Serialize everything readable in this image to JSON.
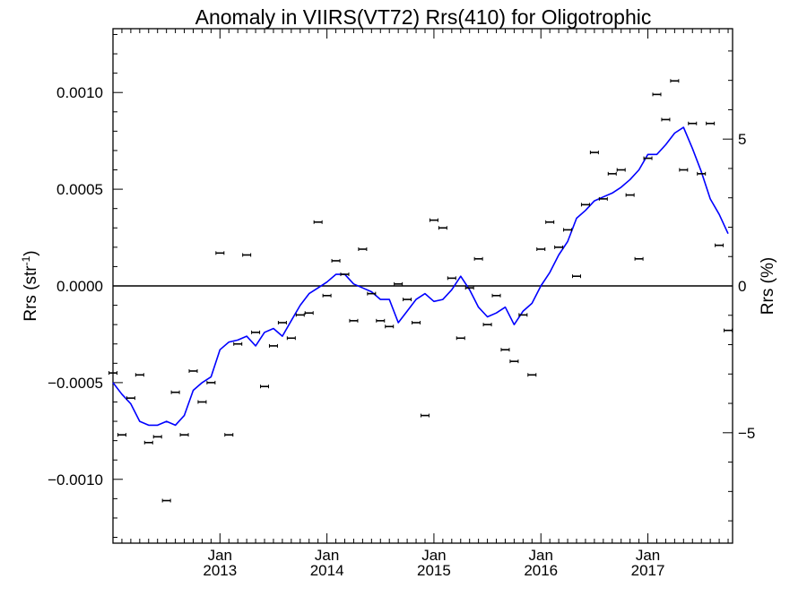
{
  "chart_data": {
    "type": "scatter",
    "title": "Anomaly in VIIRS(VT72) Rrs(410) for Oligotrophic",
    "ylabel_main": "Rrs (str",
    "ylabel_sup": "-1",
    "ylabel_close": ")",
    "y2label": "Rrs (%)",
    "ylim": [
      -0.00133,
      0.00133
    ],
    "y2lim": [
      -8.76,
      8.76
    ],
    "xlim_months": [
      0,
      69.5
    ],
    "x_start": "2012-01",
    "y_ticks": [
      "0.0010",
      "0.0005",
      "0.0000",
      "−0.0005",
      "−0.0010"
    ],
    "y_tick_values": [
      0.001,
      0.0005,
      0,
      -0.0005,
      -0.001
    ],
    "y2_ticks": [
      "5",
      "0",
      "−5"
    ],
    "y2_tick_values": [
      5,
      0,
      -5
    ],
    "x_ticks": [
      {
        "month": "Jan",
        "year": "2013"
      },
      {
        "month": "Jan",
        "year": "2014"
      },
      {
        "month": "Jan",
        "year": "2015"
      },
      {
        "month": "Jan",
        "year": "2016"
      },
      {
        "month": "Jan",
        "year": "2017"
      }
    ],
    "zero_line": true,
    "series": [
      {
        "kind": "points_with_error_bars",
        "color": "#000000",
        "dates": [
          "2012-01",
          "2012-02",
          "2012-03",
          "2012-04",
          "2012-05",
          "2012-06",
          "2012-07",
          "2012-08",
          "2012-09",
          "2012-10",
          "2012-11",
          "2012-12",
          "2013-01",
          "2013-02",
          "2013-03",
          "2013-04",
          "2013-05",
          "2013-06",
          "2013-07",
          "2013-08",
          "2013-09",
          "2013-10",
          "2013-11",
          "2013-12",
          "2014-01",
          "2014-02",
          "2014-03",
          "2014-04",
          "2014-05",
          "2014-06",
          "2014-07",
          "2014-08",
          "2014-09",
          "2014-10",
          "2014-11",
          "2014-12",
          "2015-01",
          "2015-02",
          "2015-03",
          "2015-04",
          "2015-05",
          "2015-06",
          "2015-07",
          "2015-08",
          "2015-09",
          "2015-10",
          "2015-11",
          "2015-12",
          "2016-01",
          "2016-02",
          "2016-03",
          "2016-04",
          "2016-05",
          "2016-06",
          "2016-07",
          "2016-08",
          "2016-09",
          "2016-10",
          "2016-11",
          "2016-12",
          "2017-01",
          "2017-02",
          "2017-03",
          "2017-04",
          "2017-05",
          "2017-06",
          "2017-07",
          "2017-08",
          "2017-09",
          "2017-10"
        ],
        "values": [
          -0.00045,
          -0.00077,
          -0.00058,
          -0.00046,
          -0.00081,
          -0.00078,
          -0.00111,
          -0.00055,
          -0.00077,
          -0.00044,
          -0.0006,
          -0.0005,
          0.00017,
          -0.00077,
          -0.0003,
          0.00016,
          -0.00024,
          -0.00052,
          -0.00031,
          -0.00019,
          -0.00027,
          -0.00015,
          -0.00014,
          0.00033,
          -5e-05,
          0.00013,
          6e-05,
          -0.00018,
          0.00019,
          -4e-05,
          -0.00018,
          -0.00021,
          1e-05,
          -7e-05,
          -0.00019,
          -0.00067,
          0.00034,
          0.0003,
          4e-05,
          -0.00027,
          -1e-05,
          0.00014,
          -0.0002,
          -5e-05,
          -0.00033,
          -0.00039,
          -0.00015,
          -0.00046,
          0.00019,
          0.00033,
          0.0002,
          0.00029,
          5e-05,
          0.00042,
          0.00069,
          0.00045,
          0.00058,
          0.0006,
          0.00047,
          0.00014,
          0.00066,
          0.00099,
          0.00086,
          0.00106,
          0.0006,
          0.00084,
          0.00058,
          0.00084,
          0.00021,
          -0.00023
        ]
      },
      {
        "kind": "line",
        "color": "#0000ff",
        "dates": [
          "2012-01",
          "2012-02",
          "2012-03",
          "2012-04",
          "2012-05",
          "2012-06",
          "2012-07",
          "2012-08",
          "2012-09",
          "2012-10",
          "2012-11",
          "2012-12",
          "2013-01",
          "2013-02",
          "2013-03",
          "2013-04",
          "2013-05",
          "2013-06",
          "2013-07",
          "2013-08",
          "2013-09",
          "2013-10",
          "2013-11",
          "2013-12",
          "2014-01",
          "2014-02",
          "2014-03",
          "2014-04",
          "2014-05",
          "2014-06",
          "2014-07",
          "2014-08",
          "2014-09",
          "2014-10",
          "2014-11",
          "2014-12",
          "2015-01",
          "2015-02",
          "2015-03",
          "2015-04",
          "2015-05",
          "2015-06",
          "2015-07",
          "2015-08",
          "2015-09",
          "2015-10",
          "2015-11",
          "2015-12",
          "2016-01",
          "2016-02",
          "2016-03",
          "2016-04",
          "2016-05",
          "2016-06",
          "2016-07",
          "2016-08",
          "2016-09",
          "2016-10",
          "2016-11",
          "2016-12",
          "2017-01",
          "2017-02",
          "2017-03",
          "2017-04",
          "2017-05",
          "2017-06",
          "2017-07",
          "2017-08",
          "2017-09",
          "2017-10"
        ],
        "values": [
          -0.0005,
          -0.00056,
          -0.00061,
          -0.0007,
          -0.00072,
          -0.00072,
          -0.0007,
          -0.00072,
          -0.00067,
          -0.00054,
          -0.0005,
          -0.00047,
          -0.00033,
          -0.00029,
          -0.00028,
          -0.00026,
          -0.00031,
          -0.00024,
          -0.00022,
          -0.00026,
          -0.00018,
          -0.0001,
          -4e-05,
          -1e-05,
          2e-05,
          6e-05,
          6e-05,
          1e-05,
          -1e-05,
          -3e-05,
          -7e-05,
          -7e-05,
          -0.00019,
          -0.00013,
          -7e-05,
          -4e-05,
          -8e-05,
          -7e-05,
          -2e-05,
          5e-05,
          -2e-05,
          -0.00011,
          -0.00016,
          -0.00014,
          -0.00011,
          -0.0002,
          -0.00013,
          -9e-05,
          0.0,
          7e-05,
          0.00016,
          0.00023,
          0.00035,
          0.00039,
          0.00044,
          0.00046,
          0.00048,
          0.00051,
          0.00055,
          0.0006,
          0.00068,
          0.00068,
          0.00073,
          0.00079,
          0.00082,
          0.00071,
          0.00059,
          0.00045,
          0.00037,
          0.00027
        ]
      }
    ]
  }
}
